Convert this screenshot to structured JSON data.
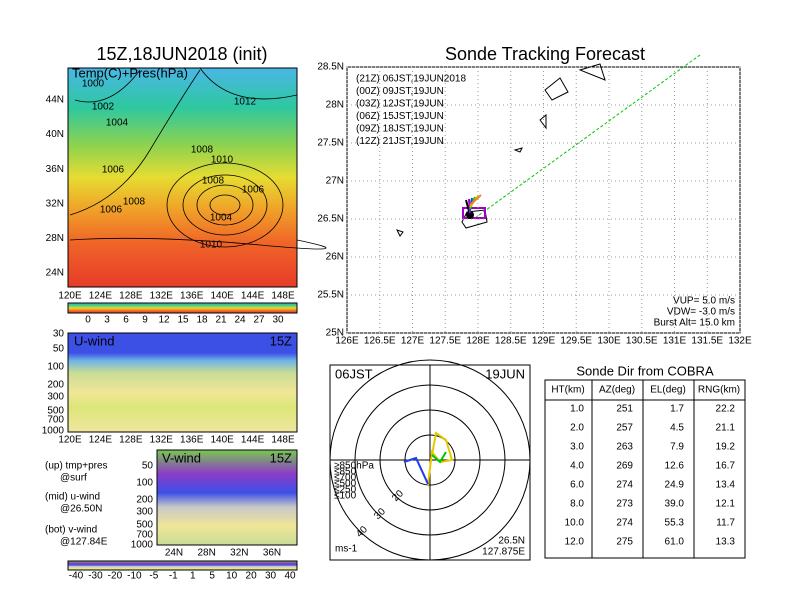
{
  "map_panel": {
    "title": "15Z,18JUN2018 (init)",
    "label": "Temp(C)+Pres(hPa)",
    "y_labels": [
      "44N",
      "40N",
      "36N",
      "32N",
      "28N",
      "24N"
    ],
    "x_labels": [
      "120E",
      "124E",
      "128E",
      "132E",
      "136E",
      "140E",
      "144E",
      "148E"
    ],
    "isobars": [
      "1000",
      "1002",
      "1004",
      "1006",
      "1008",
      "1010",
      "1012",
      "1008",
      "1006",
      "1004",
      "1010",
      "1008",
      "1006"
    ],
    "colorbar": [
      "0",
      "3",
      "6",
      "9",
      "12",
      "15",
      "18",
      "21",
      "24",
      "27",
      "30"
    ]
  },
  "u_wind": {
    "title": "U-wind",
    "time": "15Z",
    "y_labels": [
      "30",
      "50",
      "100",
      "200",
      "300",
      "500",
      "700",
      "1000"
    ],
    "x_labels": [
      "120E",
      "124E",
      "128E",
      "132E",
      "136E",
      "140E",
      "144E",
      "148E"
    ]
  },
  "notes": [
    "(up) tmp+pres",
    "@surf",
    "(mid) u-wind",
    "@26.50N",
    "(bot) v-wind",
    "@127.84E"
  ],
  "v_wind": {
    "title": "V-wind",
    "time": "15Z",
    "y_labels": [
      "50",
      "100",
      "200",
      "300",
      "500",
      "700",
      "1000"
    ],
    "x_labels": [
      "24N",
      "28N",
      "32N",
      "36N"
    ]
  },
  "wind_colorbar": [
    "-40",
    "-30",
    "-20",
    "-10",
    "-5",
    "-1",
    "1",
    "5",
    "10",
    "20",
    "30",
    "40"
  ],
  "tracking": {
    "title": "Sonde Tracking Forecast",
    "y_labels": [
      "28.5N",
      "28N",
      "27.5N",
      "27N",
      "26.5N",
      "26N",
      "25.5N",
      "25N"
    ],
    "x_labels": [
      "126E",
      "126.5E",
      "127E",
      "127.5E",
      "128E",
      "128.5E",
      "129E",
      "129.5E",
      "130E",
      "130.5E",
      "131E",
      "131.5E",
      "132E"
    ],
    "legend": [
      {
        "text": "(21Z)  06JST,19JUN2018",
        "color": "#000000"
      },
      {
        "text": "(00Z)  09JST,19JUN",
        "color": "#a000c8"
      },
      {
        "text": "(03Z)  12JST,19JUN",
        "color": "#1e3cff"
      },
      {
        "text": "(06Z)  15JST,19JUN",
        "color": "#00c800"
      },
      {
        "text": "(09Z)  18JST,19JUN",
        "color": "#e6c800"
      },
      {
        "text": "(12Z)  21JST,19JUN",
        "color": "#f08228"
      }
    ],
    "info": [
      "VUP=  5.0 m/s",
      "VDW= -3.0 m/s",
      "Burst Alt= 15.0 km"
    ]
  },
  "hodograph": {
    "left": "06JST",
    "right": "19JUN",
    "rings": [
      "20",
      "30",
      "40"
    ],
    "levels": [
      {
        "text": "≥850hPa",
        "color": "#e60000"
      },
      {
        "text": "≤850",
        "color": "#f08228"
      },
      {
        "text": "≤700",
        "color": "#e6c800"
      },
      {
        "text": "≤500",
        "color": "#00c800"
      },
      {
        "text": "≤250",
        "color": "#00b4c8"
      },
      {
        "text": "≤100",
        "color": "#1e3cff"
      }
    ],
    "unit": "ms-1",
    "lat": "26.5N",
    "lon": "127.875E"
  },
  "table": {
    "title": "Sonde Dir from COBRA",
    "headers": [
      "HT(km)",
      "AZ(deg)",
      "EL(deg)",
      "RNG(km)"
    ],
    "rows": [
      [
        "1.0",
        "251",
        "1.7",
        "22.2"
      ],
      [
        "2.0",
        "257",
        "4.5",
        "21.1"
      ],
      [
        "3.0",
        "263",
        "7.9",
        "19.2"
      ],
      [
        "4.0",
        "269",
        "12.6",
        "16.7"
      ],
      [
        "6.0",
        "274",
        "24.9",
        "13.4"
      ],
      [
        "8.0",
        "273",
        "39.0",
        "12.1"
      ],
      [
        "10.0",
        "274",
        "55.3",
        "11.7"
      ],
      [
        "12.0",
        "275",
        "61.0",
        "13.3"
      ]
    ]
  }
}
